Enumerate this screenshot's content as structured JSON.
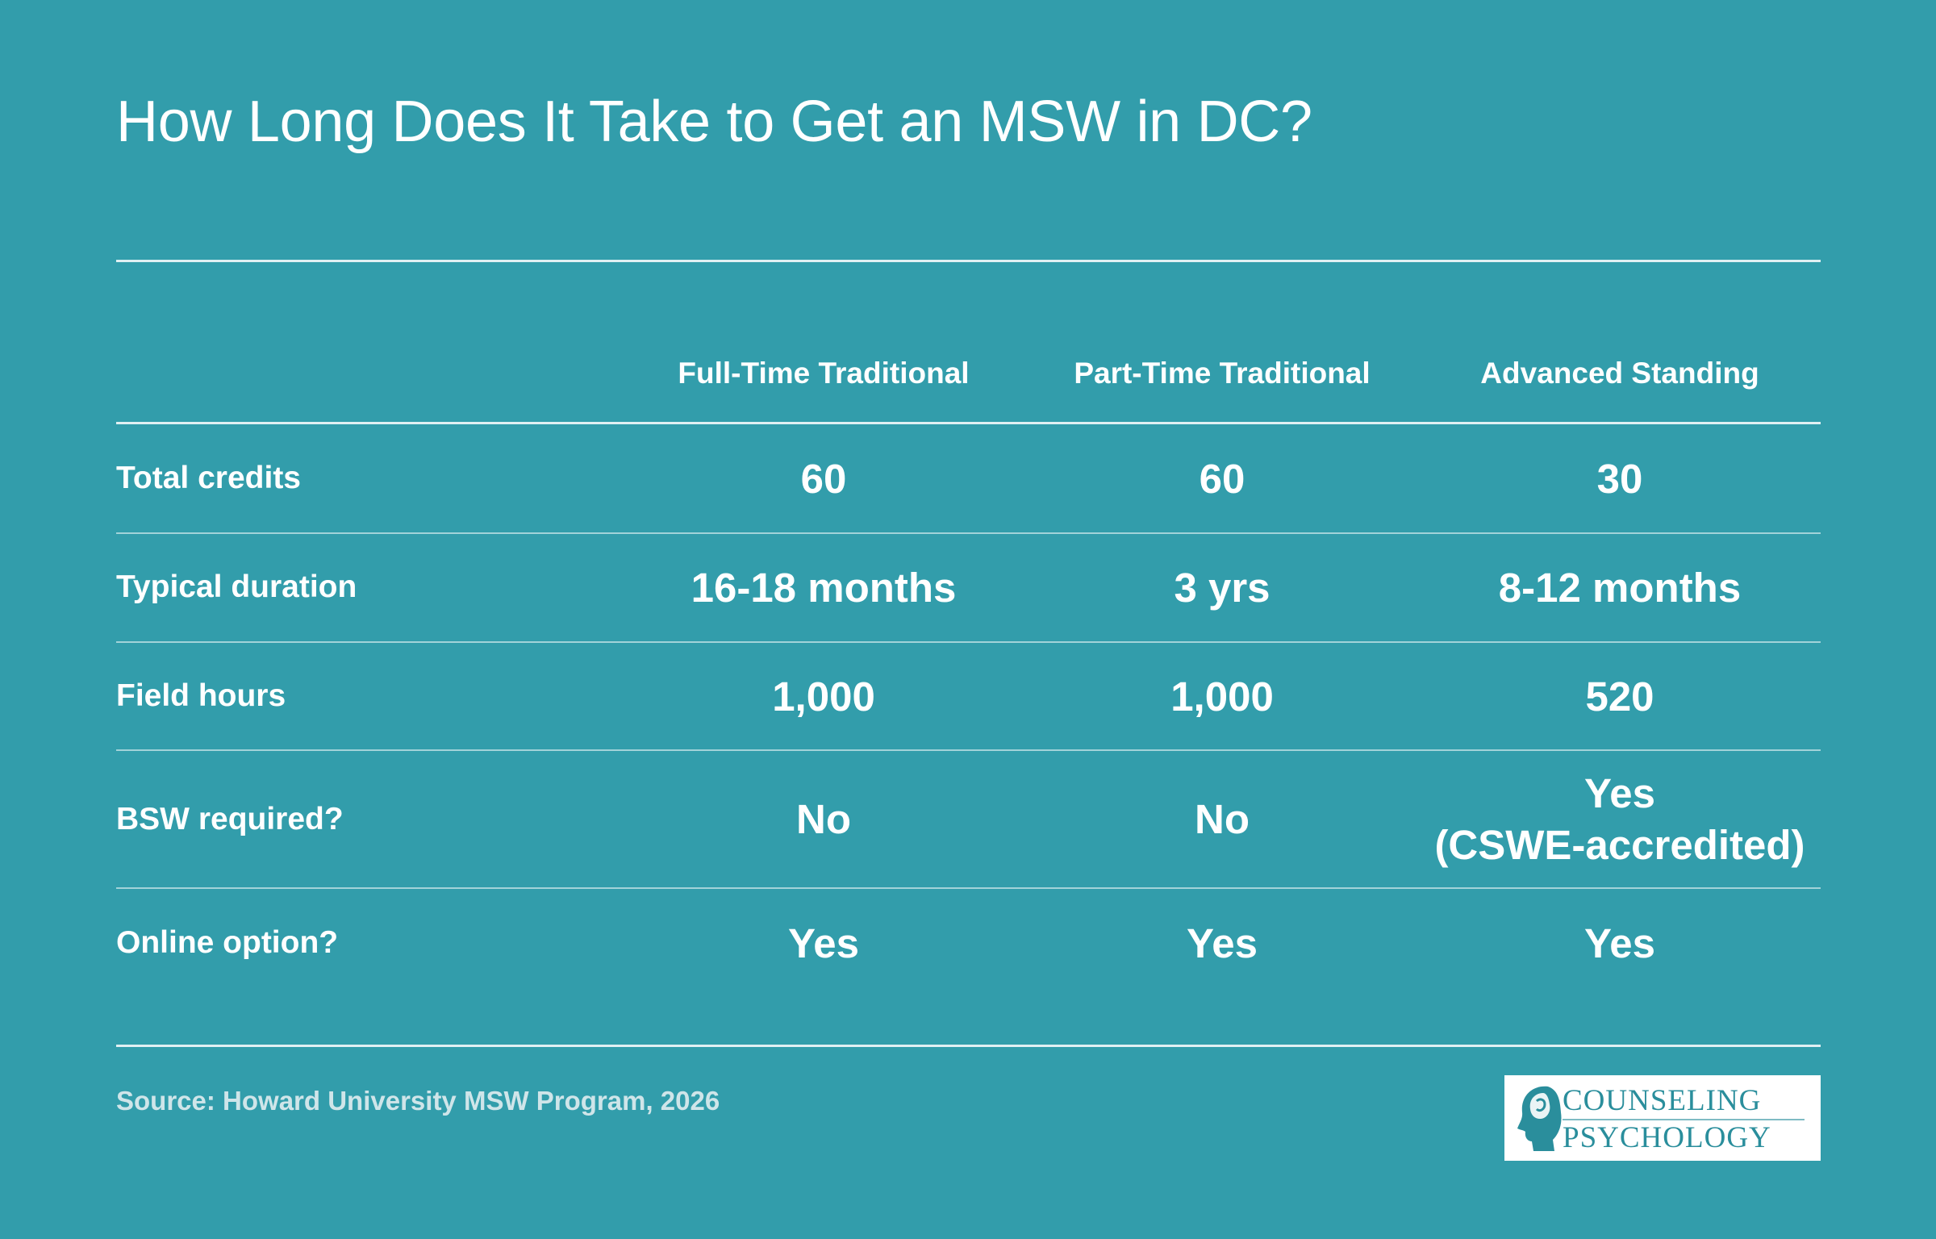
{
  "title": "How Long Does It Take to Get an MSW in DC?",
  "columns": [
    "Full-Time Traditional",
    "Part-Time Traditional",
    "Advanced Standing"
  ],
  "rows": [
    {
      "label": "Total credits",
      "values": [
        "60",
        "60",
        "30"
      ]
    },
    {
      "label": "Typical duration",
      "values": [
        "16-18 months",
        "3 yrs",
        "8-12 months"
      ]
    },
    {
      "label": "Field hours",
      "values": [
        "1,000",
        "1,000",
        "520"
      ]
    },
    {
      "label": "BSW required?",
      "values": [
        "No",
        "No",
        "Yes\n(CSWE-accredited)"
      ]
    },
    {
      "label": "Online option?",
      "values": [
        "Yes",
        "Yes",
        "Yes"
      ]
    }
  ],
  "source": "Source: Howard University MSW Program, 2026",
  "logo": {
    "line1": "COUNSELING",
    "line2": "PSYCHOLOGY",
    "icon": "head-profile-icon"
  },
  "colors": {
    "background": "#329DAB",
    "text": "#FFFFFF",
    "logo_text": "#2A8E9C"
  }
}
